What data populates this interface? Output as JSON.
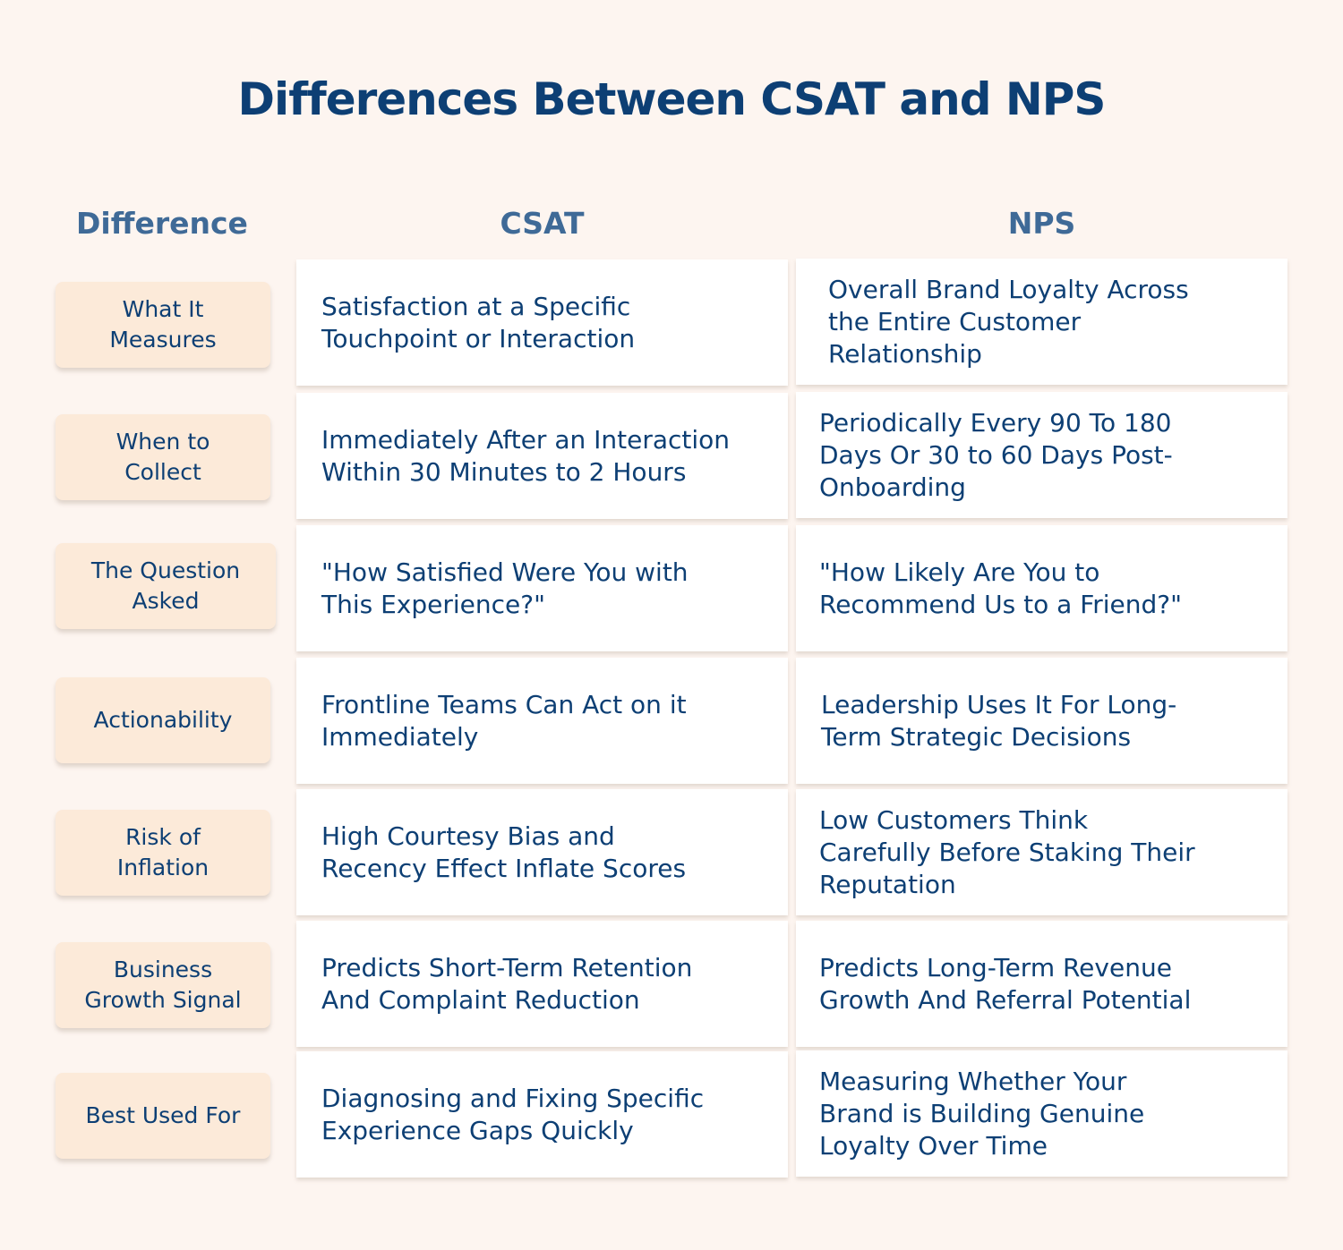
{
  "title": "Differences Between CSAT and NPS",
  "headers": {
    "difference": "Difference",
    "csat": "CSAT",
    "nps": "NPS"
  },
  "rows": [
    {
      "label": "What It\nMeasures",
      "csat": "Satisfaction at a Specific\nTouchpoint or Interaction",
      "nps": "Overall Brand Loyalty Across\nthe Entire Customer\nRelationship"
    },
    {
      "label": "When to\nCollect",
      "csat": "Immediately After an Interaction\nWithin 30 Minutes to 2 Hours",
      "nps": "Periodically  Every 90 To 180\nDays Or 30 to 60 Days Post-\nOnboarding"
    },
    {
      "label": "The Question\nAsked",
      "csat": "\"How Satisfied Were You with\nThis Experience?\"",
      "nps": "\"How Likely Are You to\nRecommend Us to a Friend?\""
    },
    {
      "label": "Actionability",
      "csat": "Frontline Teams Can Act on it\nImmediately",
      "nps": "Leadership Uses It For Long-\nTerm Strategic Decisions"
    },
    {
      "label": "Risk of\nInflation",
      "csat": "High  Courtesy Bias and\nRecency Effect Inflate Scores",
      "nps": "Low Customers Think\nCarefully Before Staking Their\nReputation"
    },
    {
      "label": "Business\nGrowth Signal",
      "csat": "Predicts Short-Term Retention\nAnd Complaint Reduction",
      "nps": "Predicts Long-Term Revenue\nGrowth And Referral Potential"
    },
    {
      "label": "Best Used For",
      "csat": "Diagnosing and Fixing Specific\nExperience Gaps Quickly",
      "nps": "Measuring Whether Your\nBrand is Building Genuine\nLoyalty Over Time"
    }
  ]
}
